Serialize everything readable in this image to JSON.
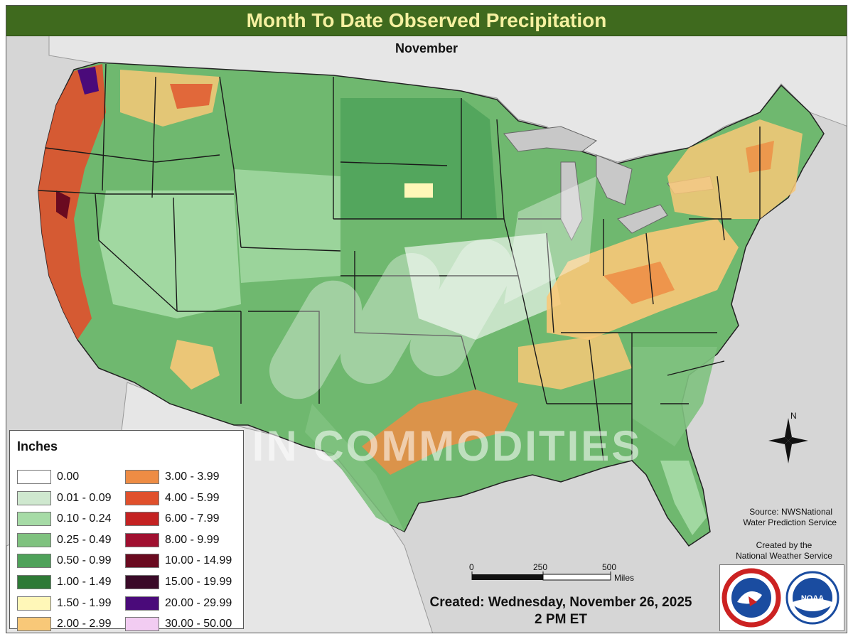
{
  "header": {
    "title": "Month To Date Observed Precipitation",
    "subtitle": "November"
  },
  "legend": {
    "title": "Inches",
    "items": [
      {
        "label": "0.00",
        "color": "#ffffff"
      },
      {
        "label": "0.01 - 0.09",
        "color": "#cfe8cf"
      },
      {
        "label": "0.10 - 0.24",
        "color": "#a6dba6"
      },
      {
        "label": "0.25 - 0.49",
        "color": "#7fc27f"
      },
      {
        "label": "0.50 - 0.99",
        "color": "#4fa25a"
      },
      {
        "label": "1.00 - 1.49",
        "color": "#2e7a36"
      },
      {
        "label": "1.50 - 1.99",
        "color": "#fff7b8"
      },
      {
        "label": "2.00 - 2.99",
        "color": "#f8c878"
      },
      {
        "label": "3.00 - 3.99",
        "color": "#ee8c44"
      },
      {
        "label": "4.00 - 5.99",
        "color": "#e0502c"
      },
      {
        "label": "6.00 - 7.99",
        "color": "#c42222"
      },
      {
        "label": "8.00 - 9.99",
        "color": "#a01030"
      },
      {
        "label": "10.00 - 14.99",
        "color": "#6a0a20"
      },
      {
        "label": "15.00 - 19.99",
        "color": "#3a0a28"
      },
      {
        "label": "20.00 - 29.99",
        "color": "#4a0a7a"
      },
      {
        "label": "30.00 - 50.00",
        "color": "#f2ccf2"
      }
    ]
  },
  "source": {
    "line1": "Source: NWSNational",
    "line2": "Water Prediction Service"
  },
  "created_by": {
    "line1": "Created by the",
    "line2": "National Weather Service"
  },
  "created": {
    "line1": "Created: Wednesday, November 26, 2025",
    "line2": "2 PM ET"
  },
  "scale": {
    "ticks": [
      "0",
      "250",
      "500"
    ],
    "unit": "Miles"
  },
  "compass": {
    "north_label": "N"
  },
  "watermark": "IN COMMODITIES",
  "logos": {
    "nws": "nws-logo",
    "noaa": "noaa-logo"
  }
}
